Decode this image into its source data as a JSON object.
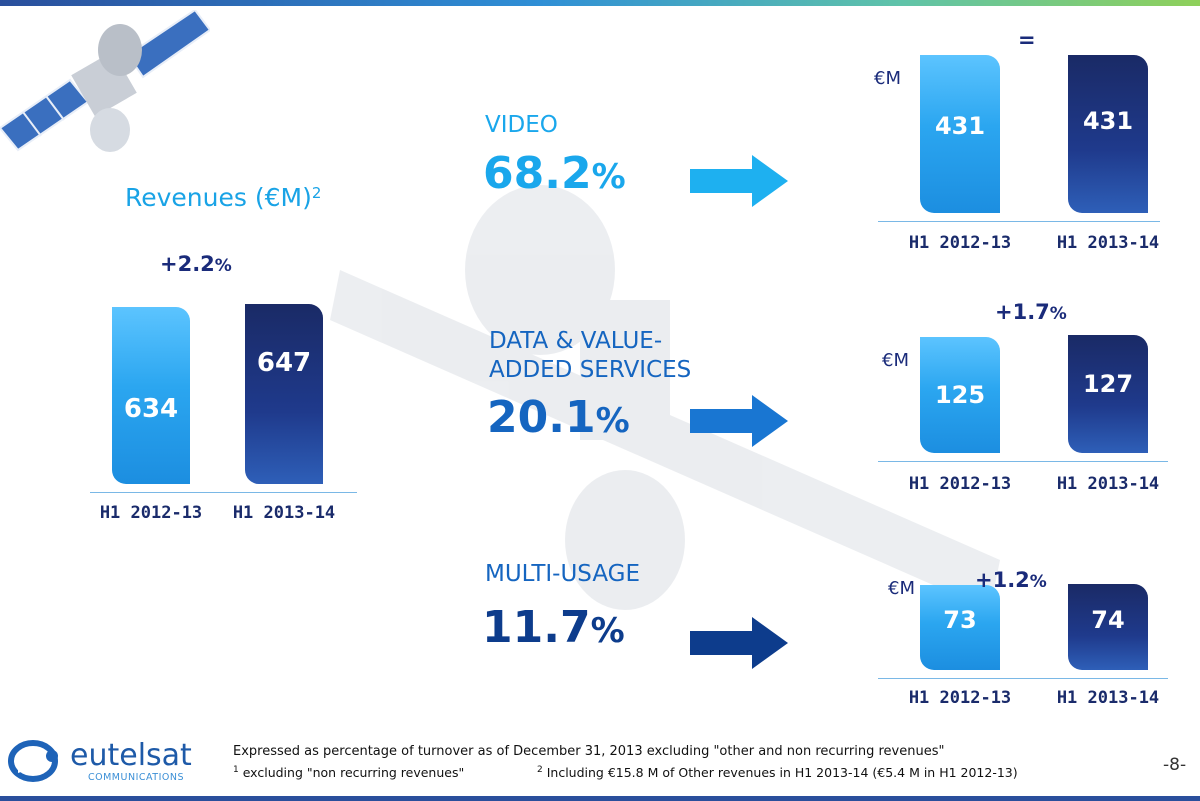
{
  "page": {
    "number": "-8-"
  },
  "colors": {
    "light_bar": "#2ba6f0",
    "dark_bar": "#1f3a8c",
    "arrow_video": "#1eb0f0",
    "arrow_data": "#1976d2",
    "arrow_multi": "#0d3c8c"
  },
  "logo": {
    "name": "eutelsat",
    "sub": "COMMUNICATIONS"
  },
  "revenues": {
    "title": "Revenues (€M)",
    "title_sup": "2",
    "growth": "+2.2",
    "growth_sym": "%"
  },
  "segments": [
    {
      "name": "VIDEO",
      "pct": "68.2",
      "pct_sym": "%",
      "unit": "€M",
      "growth": "=",
      "growth_sym": ""
    },
    {
      "name_line1": "DATA & VALUE-",
      "name_line2": "ADDED SERVICES",
      "pct": "20.1",
      "pct_sym": "%",
      "unit": "€M",
      "growth": "+1.7",
      "growth_sym": "%"
    },
    {
      "name": "MULTI-USAGE",
      "pct": "11.7",
      "pct_sym": "%",
      "unit": "€M",
      "growth": "+1.2",
      "growth_sym": "%"
    }
  ],
  "footnotes": {
    "main": "Expressed as percentage of turnover as of December 31, 2013 excluding \"other and non recurring revenues\"",
    "note1_mark": "1",
    "note1": " excluding \"non recurring revenues\"",
    "note2_mark": "2",
    "note2": " Including €15.8 M of Other revenues in H1 2013-14 (€5.4 M in H1 2012-13)"
  },
  "chart_data": [
    {
      "type": "bar",
      "title": "Revenues (€M)",
      "categories": [
        "H1 2012-13",
        "H1 2013-14"
      ],
      "values": [
        634,
        647
      ],
      "labels": [
        "634",
        "647"
      ],
      "annotation": "+2.2%",
      "ylim": [
        0,
        700
      ]
    },
    {
      "type": "bar",
      "title": "VIDEO",
      "categories": [
        "H1 2012-13",
        "H1 2013-14"
      ],
      "values": [
        431,
        431
      ],
      "labels": [
        "431",
        "431"
      ],
      "annotation": "=",
      "ylim": [
        0,
        450
      ]
    },
    {
      "type": "bar",
      "title": "DATA & VALUE-ADDED SERVICES",
      "categories": [
        "H1 2012-13",
        "H1 2013-14"
      ],
      "values": [
        125,
        127
      ],
      "labels": [
        "125",
        "127"
      ],
      "annotation": "+1.7%",
      "ylim": [
        0,
        135
      ]
    },
    {
      "type": "bar",
      "title": "MULTI-USAGE",
      "categories": [
        "H1 2012-13",
        "H1 2013-14"
      ],
      "values": [
        73,
        74
      ],
      "labels": [
        "73",
        "74"
      ],
      "annotation": "+1.2%",
      "ylim": [
        0,
        90
      ]
    }
  ]
}
